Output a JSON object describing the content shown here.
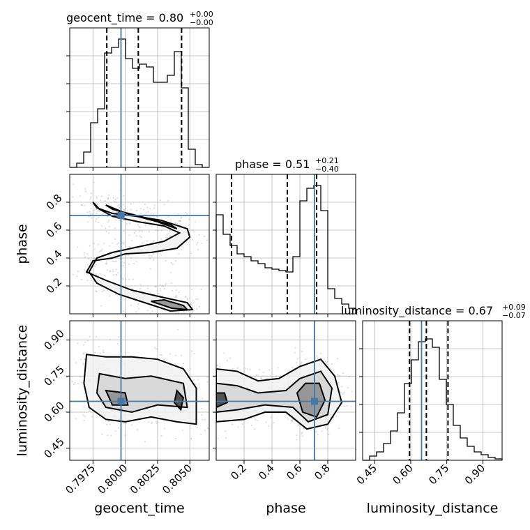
{
  "chart_data": {
    "type": "corner",
    "parameters": [
      {
        "name": "geocent_time",
        "median": 0.8,
        "plus": 0.0,
        "minus": 0.0,
        "title_main": "geocent_time = 0.80",
        "title_plus": "+0.00",
        "title_minus": "−0.00",
        "range": [
          0.7957,
          0.8065
        ],
        "ticks": [
          0.7975,
          0.8,
          0.8025,
          0.805
        ],
        "tick_labels": [
          "0.7975",
          "0.8000",
          "0.8025",
          "0.8050"
        ],
        "quantiles": [
          0.79857,
          0.80101,
          0.80436
        ],
        "truth": 0.79967,
        "histogram": {
          "edges": [
            0.7957,
            0.79624,
            0.79678,
            0.79732,
            0.79786,
            0.7984,
            0.79894,
            0.79948,
            0.80002,
            0.80056,
            0.8011,
            0.80164,
            0.80218,
            0.80272,
            0.80326,
            0.8038,
            0.80434,
            0.80488,
            0.80542,
            0.80596,
            0.8065
          ],
          "counts": [
            0,
            0.03,
            0.11,
            0.32,
            0.42,
            0.82,
            0.86,
            0.92,
            0.78,
            0.71,
            0.74,
            0.72,
            0.61,
            0.61,
            0.66,
            0.83,
            0.57,
            0.13,
            0.02,
            0
          ]
        }
      },
      {
        "name": "phase",
        "median": 0.51,
        "plus": 0.21,
        "minus": 0.4,
        "title_main": "phase = 0.51",
        "title_plus": "+0.21",
        "title_minus": "−0.40",
        "range": [
          0.0,
          1.0
        ],
        "ticks": [
          0.2,
          0.4,
          0.6,
          0.8
        ],
        "tick_labels": [
          "0.2",
          "0.4",
          "0.6",
          "0.8"
        ],
        "quantiles": [
          0.11,
          0.51,
          0.72
        ],
        "truth": 0.705,
        "histogram": {
          "edges": [
            0,
            0.05,
            0.1,
            0.15,
            0.2,
            0.25,
            0.3,
            0.35,
            0.4,
            0.45,
            0.5,
            0.55,
            0.6,
            0.65,
            0.7,
            0.75,
            0.8,
            0.85,
            0.9,
            0.95,
            1.0
          ],
          "counts": [
            0.71,
            0.57,
            0.49,
            0.43,
            0.41,
            0.38,
            0.36,
            0.33,
            0.32,
            0.31,
            0.3,
            0.41,
            0.81,
            0.9,
            0.92,
            0.74,
            0.18,
            0.11,
            0.07,
            0.04
          ]
        },
        "contour_levels_note": ""
      },
      {
        "name": "luminosity_distance",
        "median": 0.67,
        "plus": 0.09,
        "minus": 0.07,
        "title_main": "luminosity_distance = 0.67",
        "title_plus": "+0.09",
        "title_minus": "−0.07",
        "range": [
          0.4,
          0.98
        ],
        "ticks": [
          0.45,
          0.6,
          0.75,
          0.9
        ],
        "tick_labels": [
          "0.45",
          "0.60",
          "0.75",
          "0.90"
        ],
        "quantiles": [
          0.595,
          0.665,
          0.755
        ],
        "truth": 0.645,
        "histogram": {
          "edges": [
            0.4,
            0.429,
            0.458,
            0.487,
            0.516,
            0.545,
            0.574,
            0.603,
            0.632,
            0.661,
            0.69,
            0.719,
            0.748,
            0.777,
            0.806,
            0.835,
            0.864,
            0.893,
            0.922,
            0.951,
            0.98
          ],
          "counts": [
            0.0,
            0.03,
            0.06,
            0.12,
            0.21,
            0.34,
            0.55,
            0.72,
            0.85,
            0.87,
            0.81,
            0.58,
            0.4,
            0.25,
            0.16,
            0.1,
            0.06,
            0.04,
            0.02,
            0.01
          ]
        }
      }
    ],
    "pairs": [
      {
        "x": "geocent_time",
        "y": "phase",
        "contours": [
          [
            [
              0.7975,
              0.8
            ],
            [
              0.7978,
              0.76
            ],
            [
              0.799,
              0.72
            ],
            [
              0.8008,
              0.7
            ],
            [
              0.8028,
              0.67
            ],
            [
              0.8048,
              0.61
            ],
            [
              0.805,
              0.55
            ],
            [
              0.804,
              0.47
            ],
            [
              0.802,
              0.44
            ],
            [
              0.8,
              0.43
            ],
            [
              0.799,
              0.4
            ],
            [
              0.7975,
              0.38
            ],
            [
              0.797,
              0.3
            ],
            [
              0.7985,
              0.24
            ],
            [
              0.8005,
              0.17
            ],
            [
              0.8028,
              0.12
            ],
            [
              0.8048,
              0.08
            ],
            [
              0.8052,
              0.03
            ],
            [
              0.8035,
              0.02
            ],
            [
              0.8015,
              0.08
            ],
            [
              0.7995,
              0.14
            ],
            [
              0.7978,
              0.22
            ],
            [
              0.7972,
              0.3
            ],
            [
              0.7978,
              0.4
            ],
            [
              0.799,
              0.44
            ],
            [
              0.801,
              0.48
            ],
            [
              0.803,
              0.52
            ],
            [
              0.8042,
              0.58
            ],
            [
              0.803,
              0.63
            ],
            [
              0.801,
              0.66
            ],
            [
              0.799,
              0.7
            ],
            [
              0.798,
              0.75
            ],
            [
              0.7975,
              0.8
            ]
          ],
          [
            [
              0.7985,
              0.78
            ],
            [
              0.799,
              0.75
            ],
            [
              0.8005,
              0.71
            ],
            [
              0.8025,
              0.66
            ],
            [
              0.804,
              0.61
            ],
            [
              0.8035,
              0.64
            ],
            [
              0.8015,
              0.69
            ],
            [
              0.7998,
              0.73
            ],
            [
              0.7985,
              0.78
            ]
          ],
          [
            [
              0.803,
              0.1
            ],
            [
              0.8045,
              0.06
            ],
            [
              0.8048,
              0.03
            ],
            [
              0.8036,
              0.04
            ],
            [
              0.802,
              0.09
            ],
            [
              0.803,
              0.1
            ]
          ]
        ],
        "truth": [
          0.79967,
          0.705
        ]
      },
      {
        "x": "geocent_time",
        "y": "luminosity_distance",
        "contours": [
          [
            [
              0.797,
              0.84
            ],
            [
              0.7985,
              0.83
            ],
            [
              0.8005,
              0.83
            ],
            [
              0.8025,
              0.82
            ],
            [
              0.8045,
              0.78
            ],
            [
              0.8055,
              0.7
            ],
            [
              0.8055,
              0.55
            ],
            [
              0.804,
              0.56
            ],
            [
              0.802,
              0.58
            ],
            [
              0.8,
              0.56
            ],
            [
              0.7985,
              0.57
            ],
            [
              0.7972,
              0.62
            ],
            [
              0.7968,
              0.72
            ],
            [
              0.797,
              0.84
            ]
          ],
          [
            [
              0.798,
              0.76
            ],
            [
              0.8,
              0.74
            ],
            [
              0.802,
              0.75
            ],
            [
              0.8045,
              0.72
            ],
            [
              0.8048,
              0.62
            ],
            [
              0.8025,
              0.63
            ],
            [
              0.8005,
              0.6
            ],
            [
              0.7985,
              0.62
            ],
            [
              0.7978,
              0.68
            ],
            [
              0.798,
              0.76
            ]
          ],
          [
            [
              0.7985,
              0.69
            ],
            [
              0.8,
              0.68
            ],
            [
              0.8002,
              0.63
            ],
            [
              0.799,
              0.63
            ],
            [
              0.7985,
              0.69
            ]
          ],
          [
            [
              0.804,
              0.69
            ],
            [
              0.8045,
              0.66
            ],
            [
              0.8043,
              0.61
            ],
            [
              0.8038,
              0.64
            ],
            [
              0.804,
              0.69
            ]
          ]
        ],
        "truth": [
          0.79967,
          0.645
        ]
      },
      {
        "x": "phase",
        "y": "luminosity_distance",
        "contours": [
          [
            [
              0.0,
              0.78
            ],
            [
              0.15,
              0.77
            ],
            [
              0.3,
              0.73
            ],
            [
              0.45,
              0.74
            ],
            [
              0.6,
              0.79
            ],
            [
              0.75,
              0.82
            ],
            [
              0.85,
              0.75
            ],
            [
              0.9,
              0.64
            ],
            [
              0.8,
              0.55
            ],
            [
              0.65,
              0.53
            ],
            [
              0.5,
              0.6
            ],
            [
              0.35,
              0.6
            ],
            [
              0.2,
              0.57
            ],
            [
              0.0,
              0.56
            ]
          ],
          [
            [
              0.0,
              0.72
            ],
            [
              0.15,
              0.71
            ],
            [
              0.3,
              0.68
            ],
            [
              0.5,
              0.69
            ],
            [
              0.6,
              0.74
            ],
            [
              0.75,
              0.77
            ],
            [
              0.83,
              0.7
            ],
            [
              0.8,
              0.59
            ],
            [
              0.66,
              0.56
            ],
            [
              0.55,
              0.62
            ],
            [
              0.35,
              0.63
            ],
            [
              0.15,
              0.61
            ],
            [
              0.0,
              0.6
            ]
          ],
          [
            [
              0.58,
              0.68
            ],
            [
              0.64,
              0.72
            ],
            [
              0.74,
              0.72
            ],
            [
              0.78,
              0.65
            ],
            [
              0.72,
              0.58
            ],
            [
              0.62,
              0.6
            ],
            [
              0.58,
              0.68
            ]
          ],
          [
            [
              0.0,
              0.68
            ],
            [
              0.06,
              0.68
            ],
            [
              0.08,
              0.64
            ],
            [
              0.0,
              0.62
            ]
          ]
        ],
        "truth": [
          0.705,
          0.645
        ]
      }
    ],
    "colors": {
      "truth": "#4477aa",
      "contour": "#000000",
      "grid": "#b0b0b0"
    },
    "grid": true
  }
}
